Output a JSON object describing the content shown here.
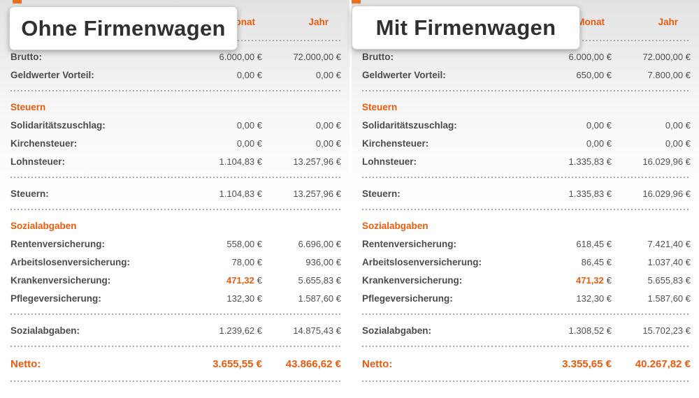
{
  "accent_color": "#ea5b0c",
  "panels": [
    {
      "overlay_title": "Ohne Firmenwagen",
      "columns": {
        "monat": "Monat",
        "jahr": "Jahr"
      },
      "rows": [
        {
          "type": "data",
          "label": "Brutto:",
          "monat": "6.000,00 €",
          "jahr": "72.000,00 €"
        },
        {
          "type": "data",
          "label": "Geldwerter Vorteil:",
          "monat": "0,00 €",
          "jahr": "0,00 €"
        },
        {
          "type": "separator"
        },
        {
          "type": "heading",
          "label": "Steuern"
        },
        {
          "type": "data",
          "label": "Solidaritätszuschlag:",
          "monat": "0,00 €",
          "jahr": "0,00 €"
        },
        {
          "type": "data",
          "label": "Kirchensteuer:",
          "monat": "0,00 €",
          "jahr": "0,00 €"
        },
        {
          "type": "data",
          "label": "Lohnsteuer:",
          "monat": "1.104,83 €",
          "jahr": "13.257,96 €"
        },
        {
          "type": "separator"
        },
        {
          "type": "data",
          "label": "Steuern:",
          "monat": "1.104,83 €",
          "jahr": "13.257,96 €"
        },
        {
          "type": "separator"
        },
        {
          "type": "heading",
          "label": "Sozialabgaben"
        },
        {
          "type": "data",
          "label": "Rentenversicherung:",
          "monat": "558,00 €",
          "jahr": "6.696,00 €"
        },
        {
          "type": "data",
          "label": "Arbeitslosenversicherung:",
          "monat": "78,00 €",
          "jahr": "936,00 €"
        },
        {
          "type": "data",
          "label": "Krankenversicherung:",
          "monat": "471,32",
          "monat_suffix": "€",
          "monat_highlight": true,
          "jahr": "5.655,83 €"
        },
        {
          "type": "data",
          "label": "Pflegeversicherung:",
          "monat": "132,30 €",
          "jahr": "1.587,60 €"
        },
        {
          "type": "separator"
        },
        {
          "type": "data",
          "label": "Sozialabgaben:",
          "monat": "1.239,62 €",
          "jahr": "14.875,43 €"
        },
        {
          "type": "separator"
        },
        {
          "type": "netto",
          "label": "Netto:",
          "monat": "3.655,55 €",
          "jahr": "43.866,62 €"
        },
        {
          "type": "separator"
        }
      ]
    },
    {
      "overlay_title": "Mit Firmenwagen",
      "columns": {
        "monat": "Monat",
        "jahr": "Jahr"
      },
      "rows": [
        {
          "type": "data",
          "label": "Brutto:",
          "monat": "6.000,00 €",
          "jahr": "72.000,00 €"
        },
        {
          "type": "data",
          "label": "Geldwerter Vorteil:",
          "monat": "650,00 €",
          "jahr": "7.800,00 €"
        },
        {
          "type": "separator"
        },
        {
          "type": "heading",
          "label": "Steuern"
        },
        {
          "type": "data",
          "label": "Solidaritätszuschlag:",
          "monat": "0,00 €",
          "jahr": "0,00 €"
        },
        {
          "type": "data",
          "label": "Kirchensteuer:",
          "monat": "0,00 €",
          "jahr": "0,00 €"
        },
        {
          "type": "data",
          "label": "Lohnsteuer:",
          "monat": "1.335,83 €",
          "jahr": "16.029,96 €"
        },
        {
          "type": "separator"
        },
        {
          "type": "data",
          "label": "Steuern:",
          "monat": "1.335,83 €",
          "jahr": "16.029,96 €"
        },
        {
          "type": "separator"
        },
        {
          "type": "heading",
          "label": "Sozialabgaben"
        },
        {
          "type": "data",
          "label": "Rentenversicherung:",
          "monat": "618,45 €",
          "jahr": "7.421,40 €"
        },
        {
          "type": "data",
          "label": "Arbeitslosenversicherung:",
          "monat": "86,45 €",
          "jahr": "1.037,40 €"
        },
        {
          "type": "data",
          "label": "Krankenversicherung:",
          "monat": "471,32",
          "monat_suffix": "€",
          "monat_highlight": true,
          "jahr": "5.655,83 €"
        },
        {
          "type": "data",
          "label": "Pflegeversicherung:",
          "monat": "132,30 €",
          "jahr": "1.587,60 €"
        },
        {
          "type": "separator"
        },
        {
          "type": "data",
          "label": "Sozialabgaben:",
          "monat": "1.308,52 €",
          "jahr": "15.702,23 €"
        },
        {
          "type": "separator"
        },
        {
          "type": "netto",
          "label": "Netto:",
          "monat": "3.355,65 €",
          "jahr": "40.267,82 €"
        },
        {
          "type": "separator"
        }
      ]
    }
  ]
}
